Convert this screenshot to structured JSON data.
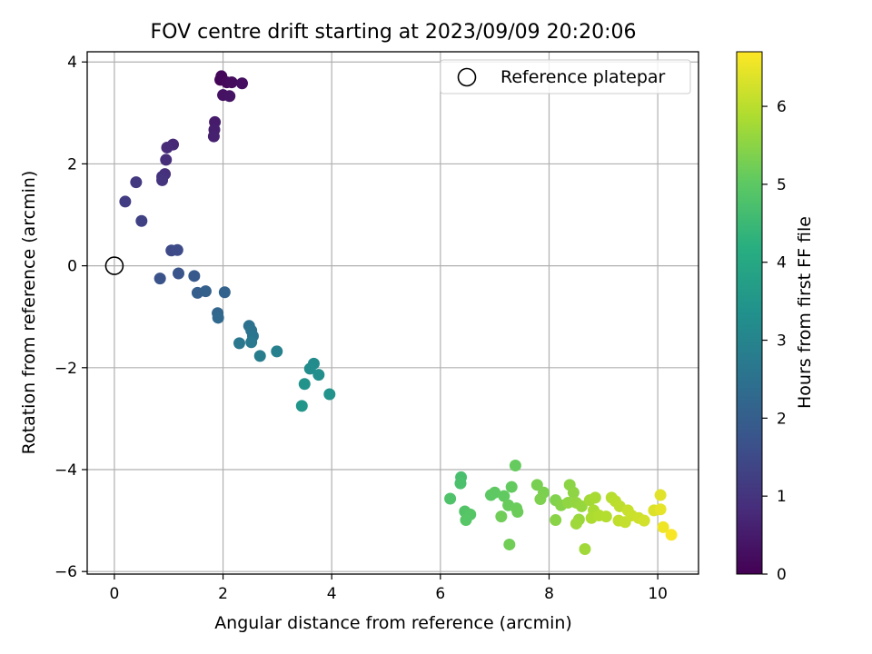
{
  "chart_data": {
    "type": "scatter",
    "title": "FOV centre drift starting at 2023/09/09 20:20:06",
    "xlabel": "Angular distance from reference (arcmin)",
    "ylabel": "Rotation from reference (arcmin)",
    "xlim": [
      -0.5,
      10.75
    ],
    "ylim": [
      -6.05,
      4.2
    ],
    "xticks": [
      0,
      2,
      4,
      6,
      8,
      10
    ],
    "yticks": [
      -6,
      -4,
      -2,
      0,
      2,
      4
    ],
    "xtick_labels": [
      "0",
      "2",
      "4",
      "6",
      "8",
      "10"
    ],
    "ytick_labels": [
      "−6",
      "−4",
      "−2",
      "0",
      "2",
      "4"
    ],
    "grid": true,
    "legend": {
      "placement": "top-right",
      "entries": [
        "Reference platepar"
      ]
    },
    "reference_point": {
      "x": 0,
      "y": 0
    },
    "colorbar": {
      "label": "Hours from first FF file",
      "range": [
        0,
        6.7
      ],
      "ticks": [
        0,
        1,
        2,
        3,
        4,
        5,
        6
      ],
      "tick_labels": [
        "0",
        "1",
        "2",
        "3",
        "4",
        "5",
        "6"
      ],
      "colormap": "viridis"
    },
    "points": [
      {
        "x": 1.95,
        "y": 3.65,
        "c": 0.05
      },
      {
        "x": 1.97,
        "y": 3.72,
        "c": 0.1
      },
      {
        "x": 2.07,
        "y": 3.6,
        "c": 0.15
      },
      {
        "x": 2.16,
        "y": 3.6,
        "c": 0.2
      },
      {
        "x": 2.35,
        "y": 3.58,
        "c": 0.25
      },
      {
        "x": 2.0,
        "y": 3.35,
        "c": 0.3
      },
      {
        "x": 2.12,
        "y": 3.33,
        "c": 0.35
      },
      {
        "x": 1.85,
        "y": 2.82,
        "c": 0.5
      },
      {
        "x": 1.84,
        "y": 2.67,
        "c": 0.55
      },
      {
        "x": 1.83,
        "y": 2.54,
        "c": 0.6
      },
      {
        "x": 1.08,
        "y": 2.38,
        "c": 0.75
      },
      {
        "x": 0.97,
        "y": 2.32,
        "c": 0.8
      },
      {
        "x": 0.95,
        "y": 2.08,
        "c": 0.85
      },
      {
        "x": 0.93,
        "y": 1.8,
        "c": 0.9
      },
      {
        "x": 0.88,
        "y": 1.75,
        "c": 0.95
      },
      {
        "x": 0.88,
        "y": 1.68,
        "c": 1.0
      },
      {
        "x": 0.4,
        "y": 1.64,
        "c": 1.1
      },
      {
        "x": 0.2,
        "y": 1.26,
        "c": 1.2
      },
      {
        "x": 0.5,
        "y": 0.88,
        "c": 1.3
      },
      {
        "x": 1.05,
        "y": 0.3,
        "c": 1.5
      },
      {
        "x": 1.16,
        "y": 0.31,
        "c": 1.55
      },
      {
        "x": 0.84,
        "y": -0.25,
        "c": 1.7
      },
      {
        "x": 1.18,
        "y": -0.15,
        "c": 1.75
      },
      {
        "x": 1.47,
        "y": -0.2,
        "c": 1.85
      },
      {
        "x": 1.53,
        "y": -0.53,
        "c": 2.0
      },
      {
        "x": 1.68,
        "y": -0.5,
        "c": 2.05
      },
      {
        "x": 2.03,
        "y": -0.52,
        "c": 2.1
      },
      {
        "x": 1.9,
        "y": -0.93,
        "c": 2.2
      },
      {
        "x": 1.91,
        "y": -1.02,
        "c": 2.25
      },
      {
        "x": 2.48,
        "y": -1.18,
        "c": 2.5
      },
      {
        "x": 2.52,
        "y": -1.27,
        "c": 2.55
      },
      {
        "x": 2.55,
        "y": -1.38,
        "c": 2.6
      },
      {
        "x": 2.3,
        "y": -1.52,
        "c": 2.65
      },
      {
        "x": 2.52,
        "y": -1.5,
        "c": 2.7
      },
      {
        "x": 2.68,
        "y": -1.77,
        "c": 2.8
      },
      {
        "x": 2.99,
        "y": -1.68,
        "c": 2.9
      },
      {
        "x": 3.67,
        "y": -1.92,
        "c": 3.2
      },
      {
        "x": 3.6,
        "y": -2.02,
        "c": 3.25
      },
      {
        "x": 3.76,
        "y": -2.14,
        "c": 3.3
      },
      {
        "x": 3.5,
        "y": -2.32,
        "c": 3.4
      },
      {
        "x": 3.96,
        "y": -2.52,
        "c": 3.45
      },
      {
        "x": 3.45,
        "y": -2.75,
        "c": 3.5
      },
      {
        "x": 6.38,
        "y": -4.15,
        "c": 4.7
      },
      {
        "x": 6.37,
        "y": -4.27,
        "c": 4.75
      },
      {
        "x": 6.18,
        "y": -4.57,
        "c": 4.8
      },
      {
        "x": 6.45,
        "y": -4.82,
        "c": 4.85
      },
      {
        "x": 6.55,
        "y": -4.88,
        "c": 4.9
      },
      {
        "x": 6.47,
        "y": -4.99,
        "c": 4.92
      },
      {
        "x": 6.93,
        "y": -4.5,
        "c": 5.0
      },
      {
        "x": 7.0,
        "y": -4.45,
        "c": 5.02
      },
      {
        "x": 7.17,
        "y": -4.52,
        "c": 5.05
      },
      {
        "x": 7.31,
        "y": -4.34,
        "c": 5.08
      },
      {
        "x": 7.38,
        "y": -3.92,
        "c": 5.1
      },
      {
        "x": 7.25,
        "y": -4.7,
        "c": 5.12
      },
      {
        "x": 7.4,
        "y": -4.76,
        "c": 5.15
      },
      {
        "x": 7.42,
        "y": -4.83,
        "c": 5.17
      },
      {
        "x": 7.12,
        "y": -4.92,
        "c": 5.2
      },
      {
        "x": 7.27,
        "y": -5.47,
        "c": 5.22
      },
      {
        "x": 7.78,
        "y": -4.3,
        "c": 5.3
      },
      {
        "x": 7.9,
        "y": -4.45,
        "c": 5.33
      },
      {
        "x": 7.84,
        "y": -4.58,
        "c": 5.36
      },
      {
        "x": 8.12,
        "y": -4.6,
        "c": 5.4
      },
      {
        "x": 8.22,
        "y": -4.7,
        "c": 5.45
      },
      {
        "x": 8.12,
        "y": -4.99,
        "c": 5.48
      },
      {
        "x": 8.38,
        "y": -4.3,
        "c": 5.5
      },
      {
        "x": 8.45,
        "y": -4.45,
        "c": 5.53
      },
      {
        "x": 8.35,
        "y": -4.65,
        "c": 5.56
      },
      {
        "x": 8.5,
        "y": -4.65,
        "c": 5.6
      },
      {
        "x": 8.6,
        "y": -4.72,
        "c": 5.63
      },
      {
        "x": 8.55,
        "y": -4.98,
        "c": 5.66
      },
      {
        "x": 8.5,
        "y": -5.06,
        "c": 5.7
      },
      {
        "x": 8.66,
        "y": -5.56,
        "c": 5.72
      },
      {
        "x": 8.75,
        "y": -4.6,
        "c": 5.75
      },
      {
        "x": 8.85,
        "y": -4.55,
        "c": 5.8
      },
      {
        "x": 8.82,
        "y": -4.8,
        "c": 5.83
      },
      {
        "x": 8.78,
        "y": -4.95,
        "c": 5.86
      },
      {
        "x": 8.92,
        "y": -4.9,
        "c": 5.9
      },
      {
        "x": 9.05,
        "y": -4.92,
        "c": 5.93
      },
      {
        "x": 9.15,
        "y": -4.55,
        "c": 5.96
      },
      {
        "x": 9.22,
        "y": -4.62,
        "c": 6.0
      },
      {
        "x": 9.3,
        "y": -4.72,
        "c": 6.03
      },
      {
        "x": 9.28,
        "y": -5.0,
        "c": 6.06
      },
      {
        "x": 9.4,
        "y": -5.03,
        "c": 6.1
      },
      {
        "x": 9.45,
        "y": -4.8,
        "c": 6.13
      },
      {
        "x": 9.52,
        "y": -4.9,
        "c": 6.16
      },
      {
        "x": 9.65,
        "y": -4.95,
        "c": 6.2
      },
      {
        "x": 9.75,
        "y": -5.0,
        "c": 6.25
      },
      {
        "x": 9.93,
        "y": -4.8,
        "c": 6.35
      },
      {
        "x": 10.05,
        "y": -4.5,
        "c": 6.4
      },
      {
        "x": 10.05,
        "y": -4.78,
        "c": 6.45
      },
      {
        "x": 10.1,
        "y": -5.13,
        "c": 6.55
      },
      {
        "x": 10.25,
        "y": -5.28,
        "c": 6.65
      }
    ]
  }
}
